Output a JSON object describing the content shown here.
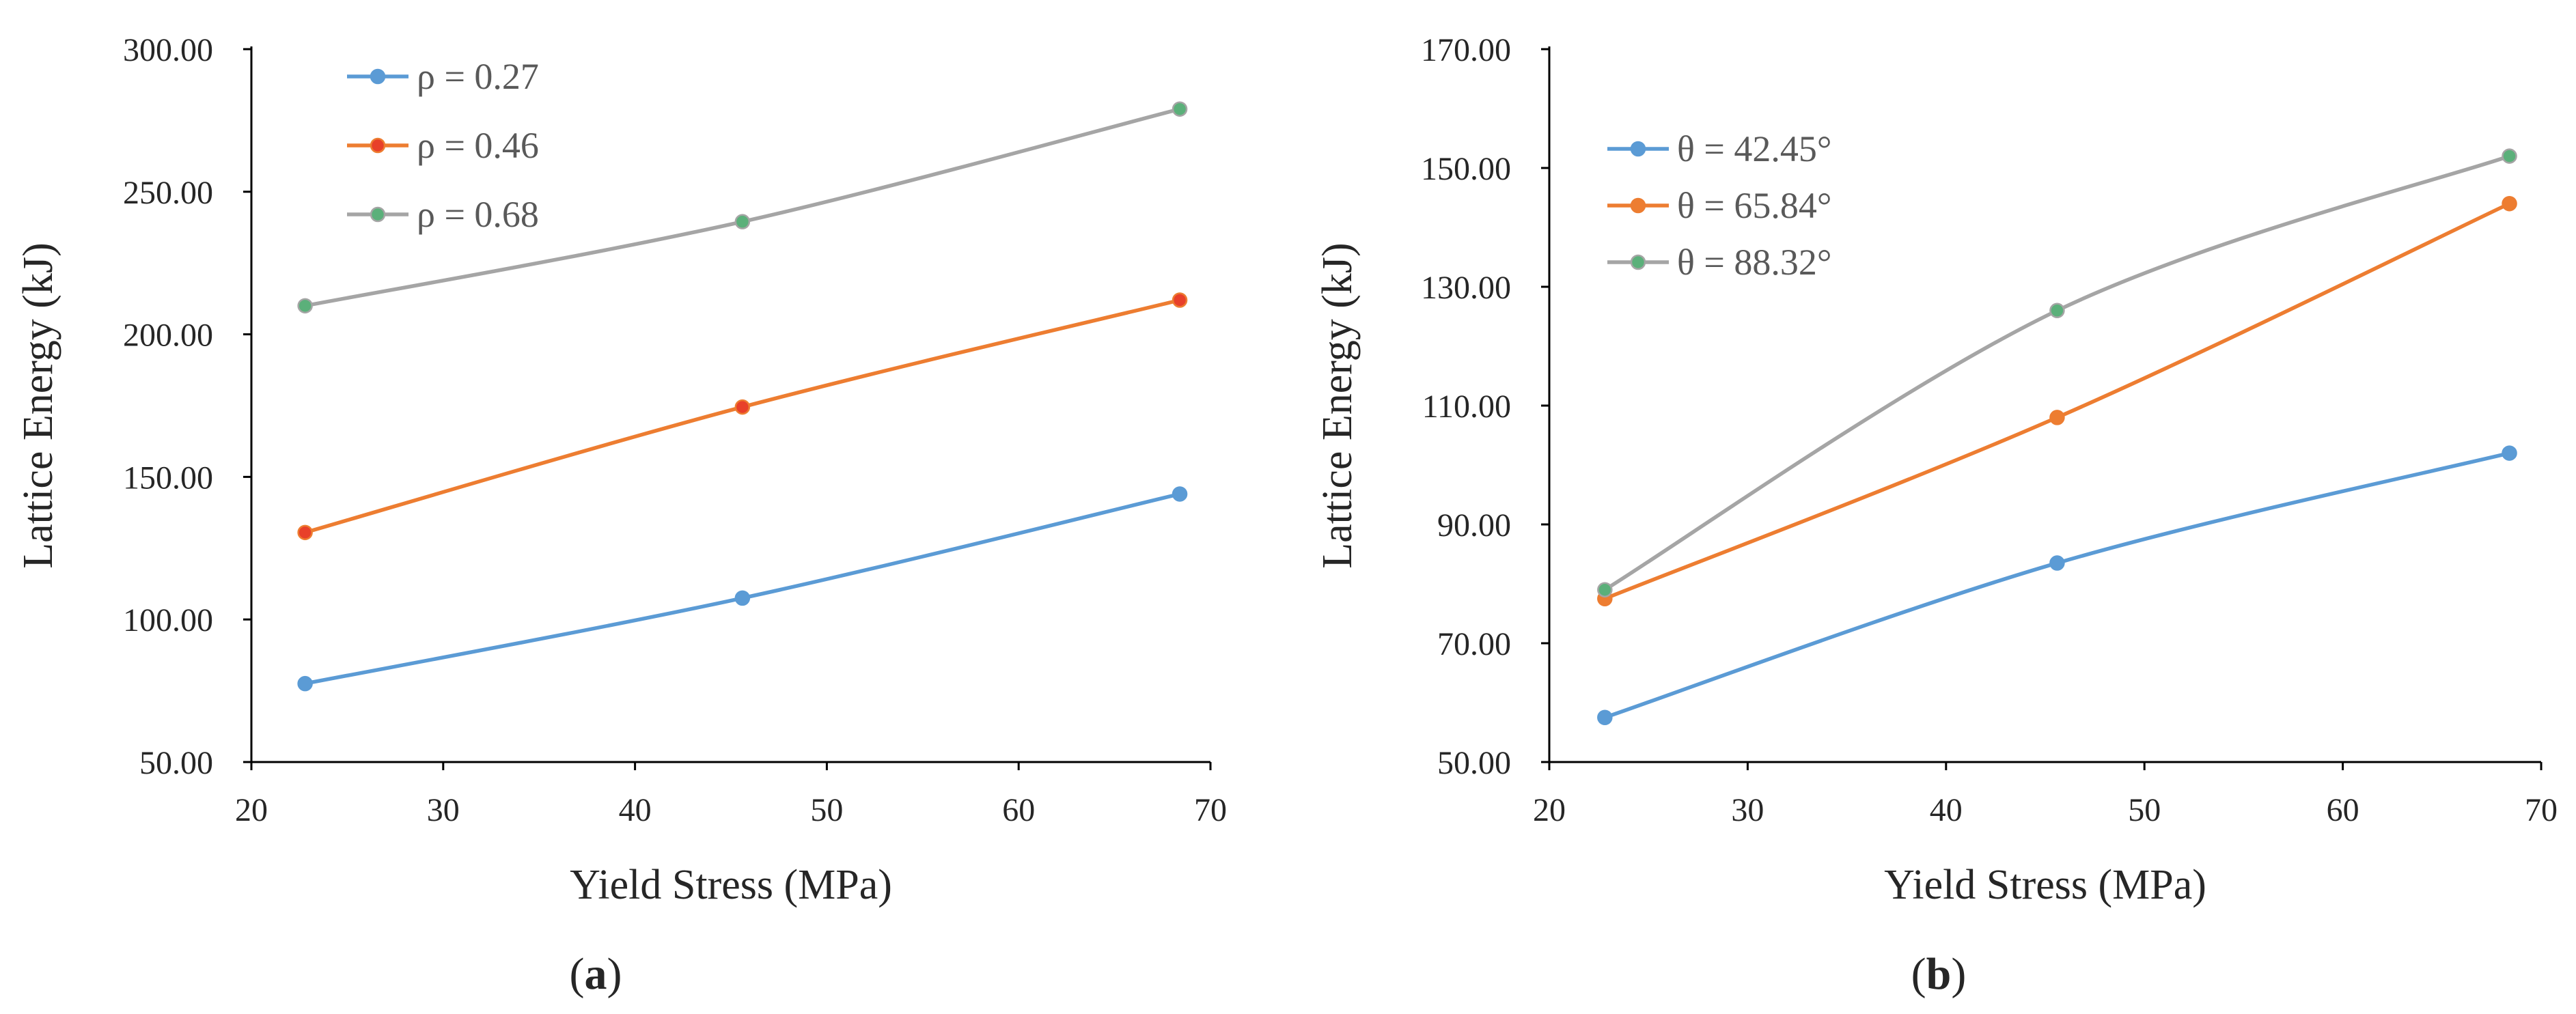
{
  "chart_data": [
    {
      "type": "line",
      "panel_label": "a",
      "xlabel": "Yield Stress (MPa)",
      "ylabel": "Lattice Energy (kJ)",
      "xlim": [
        20,
        70
      ],
      "ylim": [
        50,
        300
      ],
      "xticks": [
        20,
        30,
        40,
        50,
        60,
        70
      ],
      "xtick_labels": [
        "20",
        "30",
        "40",
        "50",
        "60",
        "70"
      ],
      "yticks": [
        50,
        100,
        150,
        200,
        250,
        300
      ],
      "ytick_labels": [
        "50.00",
        "100.00",
        "150.00",
        "200.00",
        "250.00",
        "300.00"
      ],
      "grid": false,
      "legend_position": "top-left",
      "series": [
        {
          "name": "ρ = 0.27",
          "color": "#5b9bd5",
          "marker_color": "#5b9bd5",
          "x": [
            22.8,
            45.6,
            68.4
          ],
          "values": [
            77.5,
            107.5,
            144.0
          ]
        },
        {
          "name": "ρ = 0.46",
          "color": "#ed7d31",
          "marker_color": "#e8402a",
          "x": [
            22.8,
            45.6,
            68.4
          ],
          "values": [
            130.5,
            174.5,
            212.0
          ]
        },
        {
          "name": "ρ = 0.68",
          "color": "#a5a5a5",
          "marker_color": "#5bb07a",
          "x": [
            22.8,
            45.6,
            68.4
          ],
          "values": [
            210.0,
            239.5,
            279.0
          ]
        }
      ]
    },
    {
      "type": "line",
      "panel_label": "b",
      "xlabel": "Yield Stress (MPa)",
      "ylabel": "Lattice Energy (kJ)",
      "xlim": [
        20,
        70
      ],
      "ylim": [
        50,
        170
      ],
      "xticks": [
        20,
        30,
        40,
        50,
        60,
        70
      ],
      "xtick_labels": [
        "20",
        "30",
        "40",
        "50",
        "60",
        "70"
      ],
      "yticks": [
        50,
        70,
        90,
        110,
        130,
        150,
        170
      ],
      "ytick_labels": [
        "50.00",
        "70.00",
        "90.00",
        "110.00",
        "130.00",
        "150.00",
        "170.00"
      ],
      "grid": false,
      "legend_position": "top-left",
      "series": [
        {
          "name": "θ = 42.45°",
          "color": "#5b9bd5",
          "marker_color": "#5b9bd5",
          "x": [
            22.8,
            45.6,
            68.4
          ],
          "values": [
            57.5,
            83.5,
            102.0
          ]
        },
        {
          "name": "θ = 65.84°",
          "color": "#ed7d31",
          "marker_color": "#ed7d31",
          "x": [
            22.8,
            45.6,
            68.4
          ],
          "values": [
            77.5,
            108.0,
            144.0
          ]
        },
        {
          "name": "θ = 88.32°",
          "color": "#a5a5a5",
          "marker_color": "#5bb07a",
          "x": [
            22.8,
            45.6,
            68.4
          ],
          "values": [
            79.0,
            126.0,
            152.0
          ]
        }
      ]
    }
  ]
}
